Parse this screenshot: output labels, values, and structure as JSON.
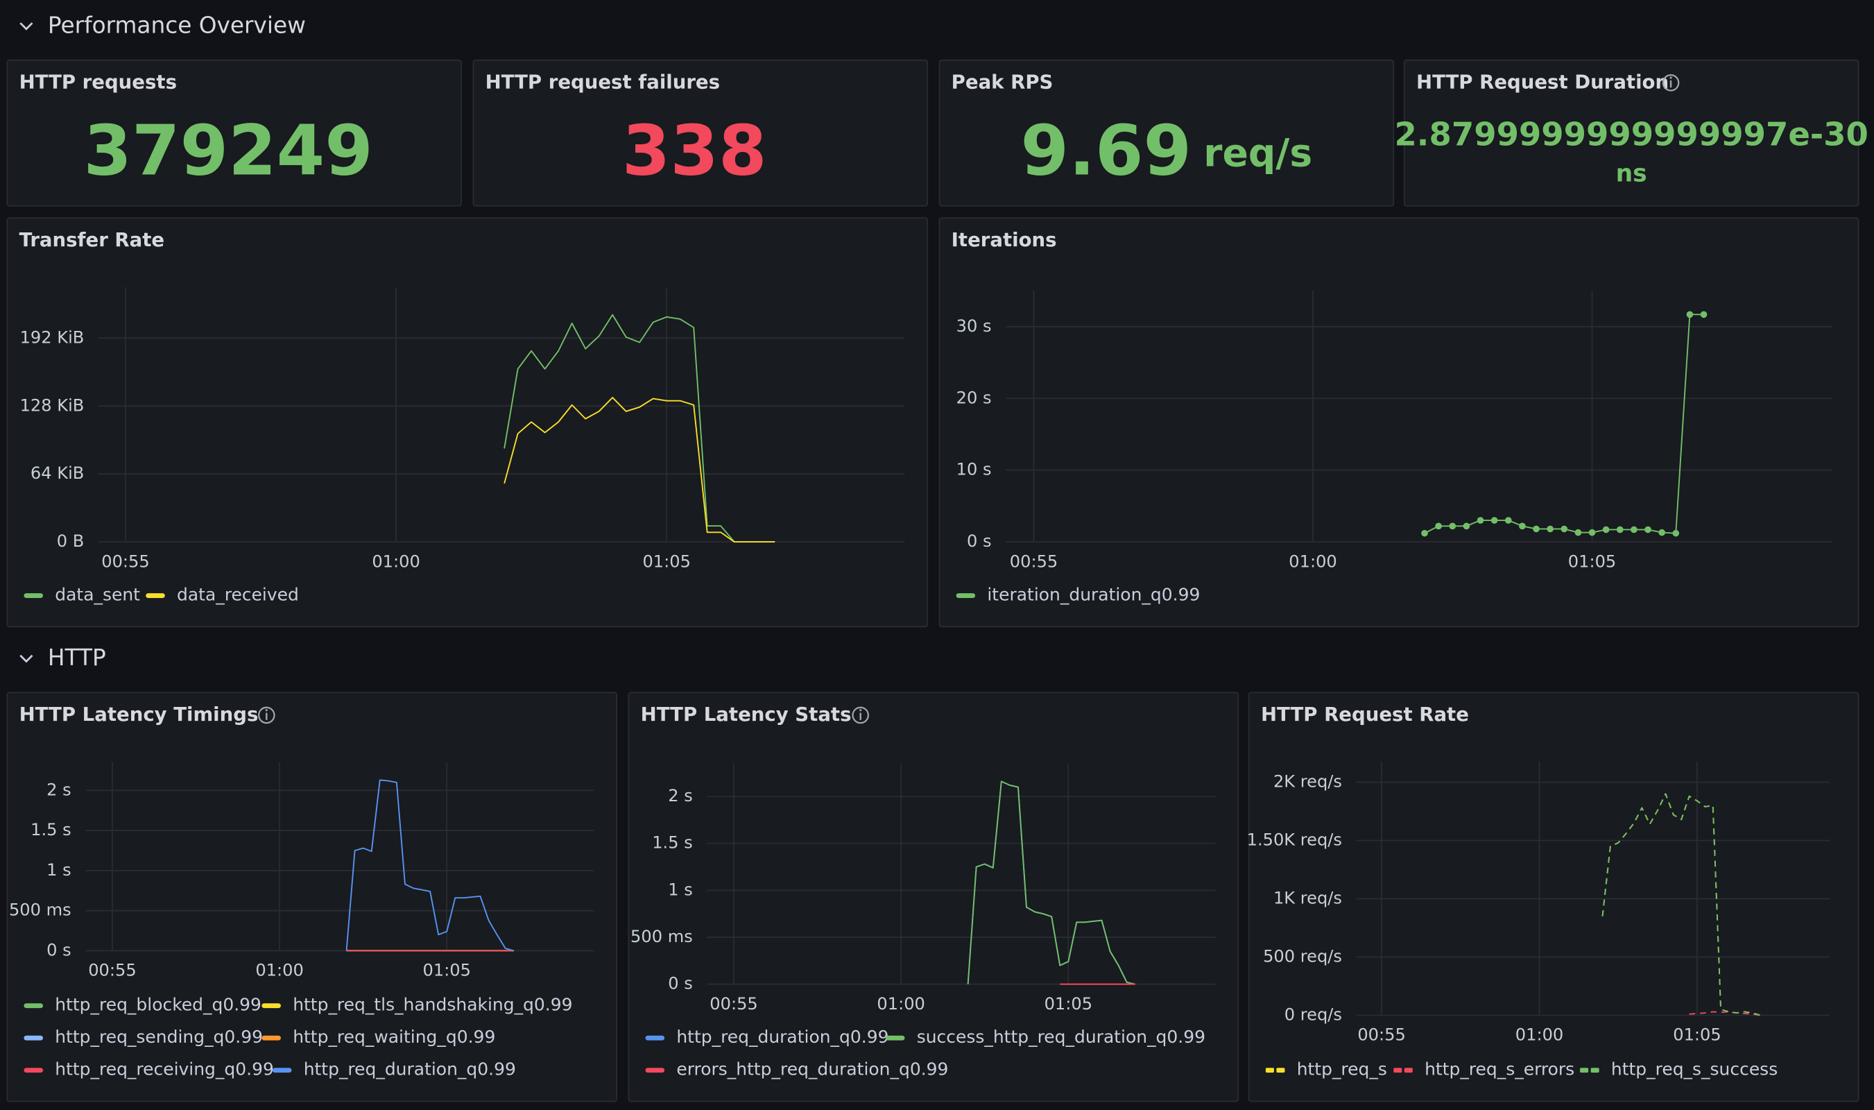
{
  "sections": [
    "Performance Overview",
    "HTTP"
  ],
  "stats": [
    {
      "title": "HTTP requests",
      "value": 379249,
      "color": "#73bf69"
    },
    {
      "title": "HTTP request failures",
      "value": 338,
      "color": "#f2495c"
    },
    {
      "title": "Peak RPS",
      "value": 9.69,
      "unit": "req/s",
      "color": "#73bf69"
    },
    {
      "title": "HTTP Request Duration",
      "value": "2.8799999999999997e-30",
      "unit": "ns",
      "color": "#73bf69"
    }
  ],
  "chart_data": [
    {
      "type": "line",
      "title": "Transfer Rate",
      "grid": true,
      "x": [
        62,
        62.25,
        62.5,
        62.75,
        63,
        63.25,
        63.5,
        63.75,
        64,
        64.25,
        64.5,
        64.75,
        65,
        65.25,
        65.5,
        65.75,
        66,
        66.25,
        66.5,
        66.75,
        67
      ],
      "xlim": [
        54.5,
        69.4
      ],
      "xticks": [
        {
          "value": 55,
          "label": "00:55"
        },
        {
          "value": 60,
          "label": "01:00"
        },
        {
          "value": 65,
          "label": "01:05"
        }
      ],
      "ylim": [
        0,
        240
      ],
      "yticks": [
        {
          "value": 0,
          "label": "0 B"
        },
        {
          "value": 64,
          "label": "64 KiB"
        },
        {
          "value": 128,
          "label": "128 KiB"
        },
        {
          "value": 192,
          "label": "192 KiB"
        }
      ],
      "series": [
        {
          "name": "data_sent",
          "color": "#73bf69",
          "values": [
            88,
            163,
            180,
            163,
            180,
            206,
            182,
            194,
            214,
            193,
            188,
            207,
            212,
            210,
            202,
            15,
            15,
            0,
            0,
            0,
            0
          ]
        },
        {
          "name": "data_received",
          "color": "#fade2a",
          "values": [
            55,
            102,
            113,
            103,
            113,
            129,
            116,
            123,
            136,
            123,
            127,
            135,
            133,
            133,
            129,
            9,
            9,
            0,
            0,
            0,
            0
          ]
        }
      ]
    },
    {
      "type": "line",
      "title": "Iterations",
      "grid": true,
      "show_points": true,
      "x": [
        62,
        62.25,
        62.5,
        62.75,
        63,
        63.25,
        63.5,
        63.75,
        64,
        64.25,
        64.5,
        64.75,
        65,
        65.25,
        65.5,
        65.75,
        66,
        66.25,
        66.5,
        66.75,
        67
      ],
      "xlim": [
        54.5,
        69.3
      ],
      "xticks": [
        {
          "value": 55,
          "label": "00:55"
        },
        {
          "value": 60,
          "label": "01:00"
        },
        {
          "value": 65,
          "label": "01:05"
        }
      ],
      "ylim": [
        0,
        35
      ],
      "yticks": [
        {
          "value": 0,
          "label": "0 s"
        },
        {
          "value": 10,
          "label": "10 s"
        },
        {
          "value": 20,
          "label": "20 s"
        },
        {
          "value": 30,
          "label": "30 s"
        }
      ],
      "series": [
        {
          "name": "iteration_duration_q0.99",
          "color": "#73bf69",
          "values": [
            1.2,
            2.2,
            2.2,
            2.2,
            3.0,
            3.0,
            3.0,
            2.2,
            1.8,
            1.8,
            1.8,
            1.3,
            1.3,
            1.7,
            1.7,
            1.7,
            1.7,
            1.3,
            1.2,
            31.7,
            31.7
          ]
        }
      ]
    },
    {
      "type": "line",
      "title": "HTTP Latency Timings",
      "grid": true,
      "x": [
        62,
        62.25,
        62.5,
        62.75,
        63,
        63.25,
        63.5,
        63.75,
        64,
        64.25,
        64.5,
        64.75,
        65,
        65.25,
        65.5,
        65.75,
        66,
        66.25,
        66.5,
        66.75,
        67
      ],
      "xlim": [
        54.2,
        69.4
      ],
      "xticks": [
        {
          "value": 55,
          "label": "00:55"
        },
        {
          "value": 60,
          "label": "01:00"
        },
        {
          "value": 65,
          "label": "01:05"
        }
      ],
      "ylim": [
        0,
        2.35
      ],
      "yticks": [
        {
          "value": 0,
          "label": "0 s"
        },
        {
          "value": 0.5,
          "label": "500 ms"
        },
        {
          "value": 1,
          "label": "1 s"
        },
        {
          "value": 1.5,
          "label": "1.5 s"
        },
        {
          "value": 2,
          "label": "2 s"
        }
      ],
      "series": [
        {
          "name": "http_req_blocked_q0.99",
          "color": "#73bf69",
          "values": [
            0,
            0,
            0,
            0,
            0,
            0,
            0,
            0,
            0,
            0,
            0,
            0,
            0,
            0,
            0,
            0,
            0,
            0,
            0,
            0,
            0
          ]
        },
        {
          "name": "http_req_tls_handshaking_q0.99",
          "color": "#fade2a",
          "values": [
            0,
            0,
            0,
            0,
            0,
            0,
            0,
            0,
            0,
            0,
            0,
            0,
            0,
            0,
            0,
            0,
            0,
            0,
            0,
            0,
            0
          ]
        },
        {
          "name": "http_req_sending_q0.99",
          "color": "#8ab8ff",
          "values": [
            0,
            0,
            0,
            0,
            0,
            0,
            0,
            0,
            0,
            0,
            0,
            0,
            0,
            0,
            0,
            0,
            0,
            0,
            0,
            0,
            0
          ]
        },
        {
          "name": "http_req_waiting_q0.99",
          "color": "#ff9830",
          "values": [
            0,
            0,
            0,
            0,
            0,
            0,
            0,
            0,
            0,
            0,
            0,
            0,
            0,
            0,
            0,
            0,
            0,
            0,
            0,
            0,
            0
          ]
        },
        {
          "name": "http_req_receiving_q0.99",
          "color": "#f2495c",
          "values": [
            0,
            0,
            0,
            0,
            0,
            0,
            0,
            0,
            0,
            0,
            0,
            0,
            0,
            0,
            0,
            0,
            0,
            0,
            0,
            0,
            0
          ]
        },
        {
          "name": "http_req_duration_q0.99",
          "color": "#5794f2",
          "values": [
            0,
            1.25,
            1.28,
            1.24,
            2.13,
            2.12,
            2.1,
            0.83,
            0.78,
            0.76,
            0.74,
            0.2,
            0.24,
            0.66,
            0.66,
            0.67,
            0.68,
            0.38,
            0.2,
            0.03,
            0
          ]
        }
      ]
    },
    {
      "type": "line",
      "title": "HTTP Latency Stats",
      "grid": true,
      "x": [
        62,
        62.25,
        62.5,
        62.75,
        63,
        63.25,
        63.5,
        63.75,
        64,
        64.25,
        64.5,
        64.75,
        65,
        65.25,
        65.5,
        65.75,
        66,
        66.25,
        66.5,
        66.75,
        67
      ],
      "xlim": [
        54.2,
        69.4
      ],
      "xticks": [
        {
          "value": 55,
          "label": "00:55"
        },
        {
          "value": 60,
          "label": "01:00"
        },
        {
          "value": 65,
          "label": "01:05"
        }
      ],
      "ylim": [
        0,
        2.35
      ],
      "yticks": [
        {
          "value": 0,
          "label": "0 s"
        },
        {
          "value": 0.5,
          "label": "500 ms"
        },
        {
          "value": 1,
          "label": "1 s"
        },
        {
          "value": 1.5,
          "label": "1.5 s"
        },
        {
          "value": 2,
          "label": "2 s"
        }
      ],
      "series": [
        {
          "name": "http_req_duration_q0.99",
          "color": "#5794f2",
          "values": [
            0,
            1.25,
            1.28,
            1.24,
            2.16,
            2.12,
            2.1,
            0.82,
            0.77,
            0.75,
            0.72,
            0.2,
            0.24,
            0.66,
            0.66,
            0.67,
            0.68,
            0.35,
            0.2,
            0.02,
            0
          ]
        },
        {
          "name": "success_http_req_duration_q0.99",
          "color": "#73bf69",
          "values": [
            0,
            1.25,
            1.28,
            1.24,
            2.16,
            2.12,
            2.1,
            0.82,
            0.77,
            0.75,
            0.72,
            0.2,
            0.24,
            0.66,
            0.66,
            0.67,
            0.68,
            0.35,
            0.2,
            0.02,
            0
          ]
        },
        {
          "name": "errors_http_req_duration_q0.99",
          "color": "#f2495c",
          "values": [
            null,
            null,
            null,
            null,
            null,
            null,
            null,
            null,
            null,
            null,
            null,
            0,
            0,
            0,
            0,
            0,
            0,
            0,
            0,
            0,
            0
          ]
        }
      ]
    },
    {
      "type": "line",
      "title": "HTTP Request Rate",
      "grid": true,
      "line_style": "dashed",
      "x": [
        62,
        62.25,
        62.5,
        62.75,
        63,
        63.25,
        63.5,
        63.75,
        64,
        64.25,
        64.5,
        64.75,
        65,
        65.25,
        65.5,
        65.75,
        66,
        66.25,
        66.5,
        66.75,
        67
      ],
      "xlim": [
        54.2,
        69.2
      ],
      "xticks": [
        {
          "value": 55,
          "label": "00:55"
        },
        {
          "value": 60,
          "label": "01:00"
        },
        {
          "value": 65,
          "label": "01:05"
        }
      ],
      "ylim": [
        0,
        2175
      ],
      "yticks": [
        {
          "value": 0,
          "label": "0 req/s"
        },
        {
          "value": 500,
          "label": "500 req/s"
        },
        {
          "value": 1000,
          "label": "1K req/s"
        },
        {
          "value": 1500,
          "label": "1.50K req/s"
        },
        {
          "value": 2000,
          "label": "2K req/s"
        }
      ],
      "series": [
        {
          "name": "http_req_s",
          "color": "#fade2a",
          "values": [
            850,
            1450,
            1480,
            1560,
            1650,
            1780,
            1640,
            1760,
            1900,
            1720,
            1680,
            1880,
            1840,
            1790,
            1800,
            50,
            30,
            20,
            30,
            20,
            0
          ]
        },
        {
          "name": "http_req_s_errors",
          "color": "#f2495c",
          "values": [
            null,
            null,
            null,
            null,
            null,
            null,
            null,
            null,
            null,
            null,
            null,
            10,
            15,
            20,
            30,
            25,
            30,
            20,
            15,
            10,
            0
          ]
        },
        {
          "name": "http_req_s_success",
          "color": "#73bf69",
          "values": [
            850,
            1450,
            1480,
            1560,
            1650,
            1780,
            1640,
            1760,
            1900,
            1720,
            1680,
            1880,
            1840,
            1790,
            1800,
            50,
            30,
            20,
            30,
            20,
            0
          ]
        }
      ]
    }
  ]
}
